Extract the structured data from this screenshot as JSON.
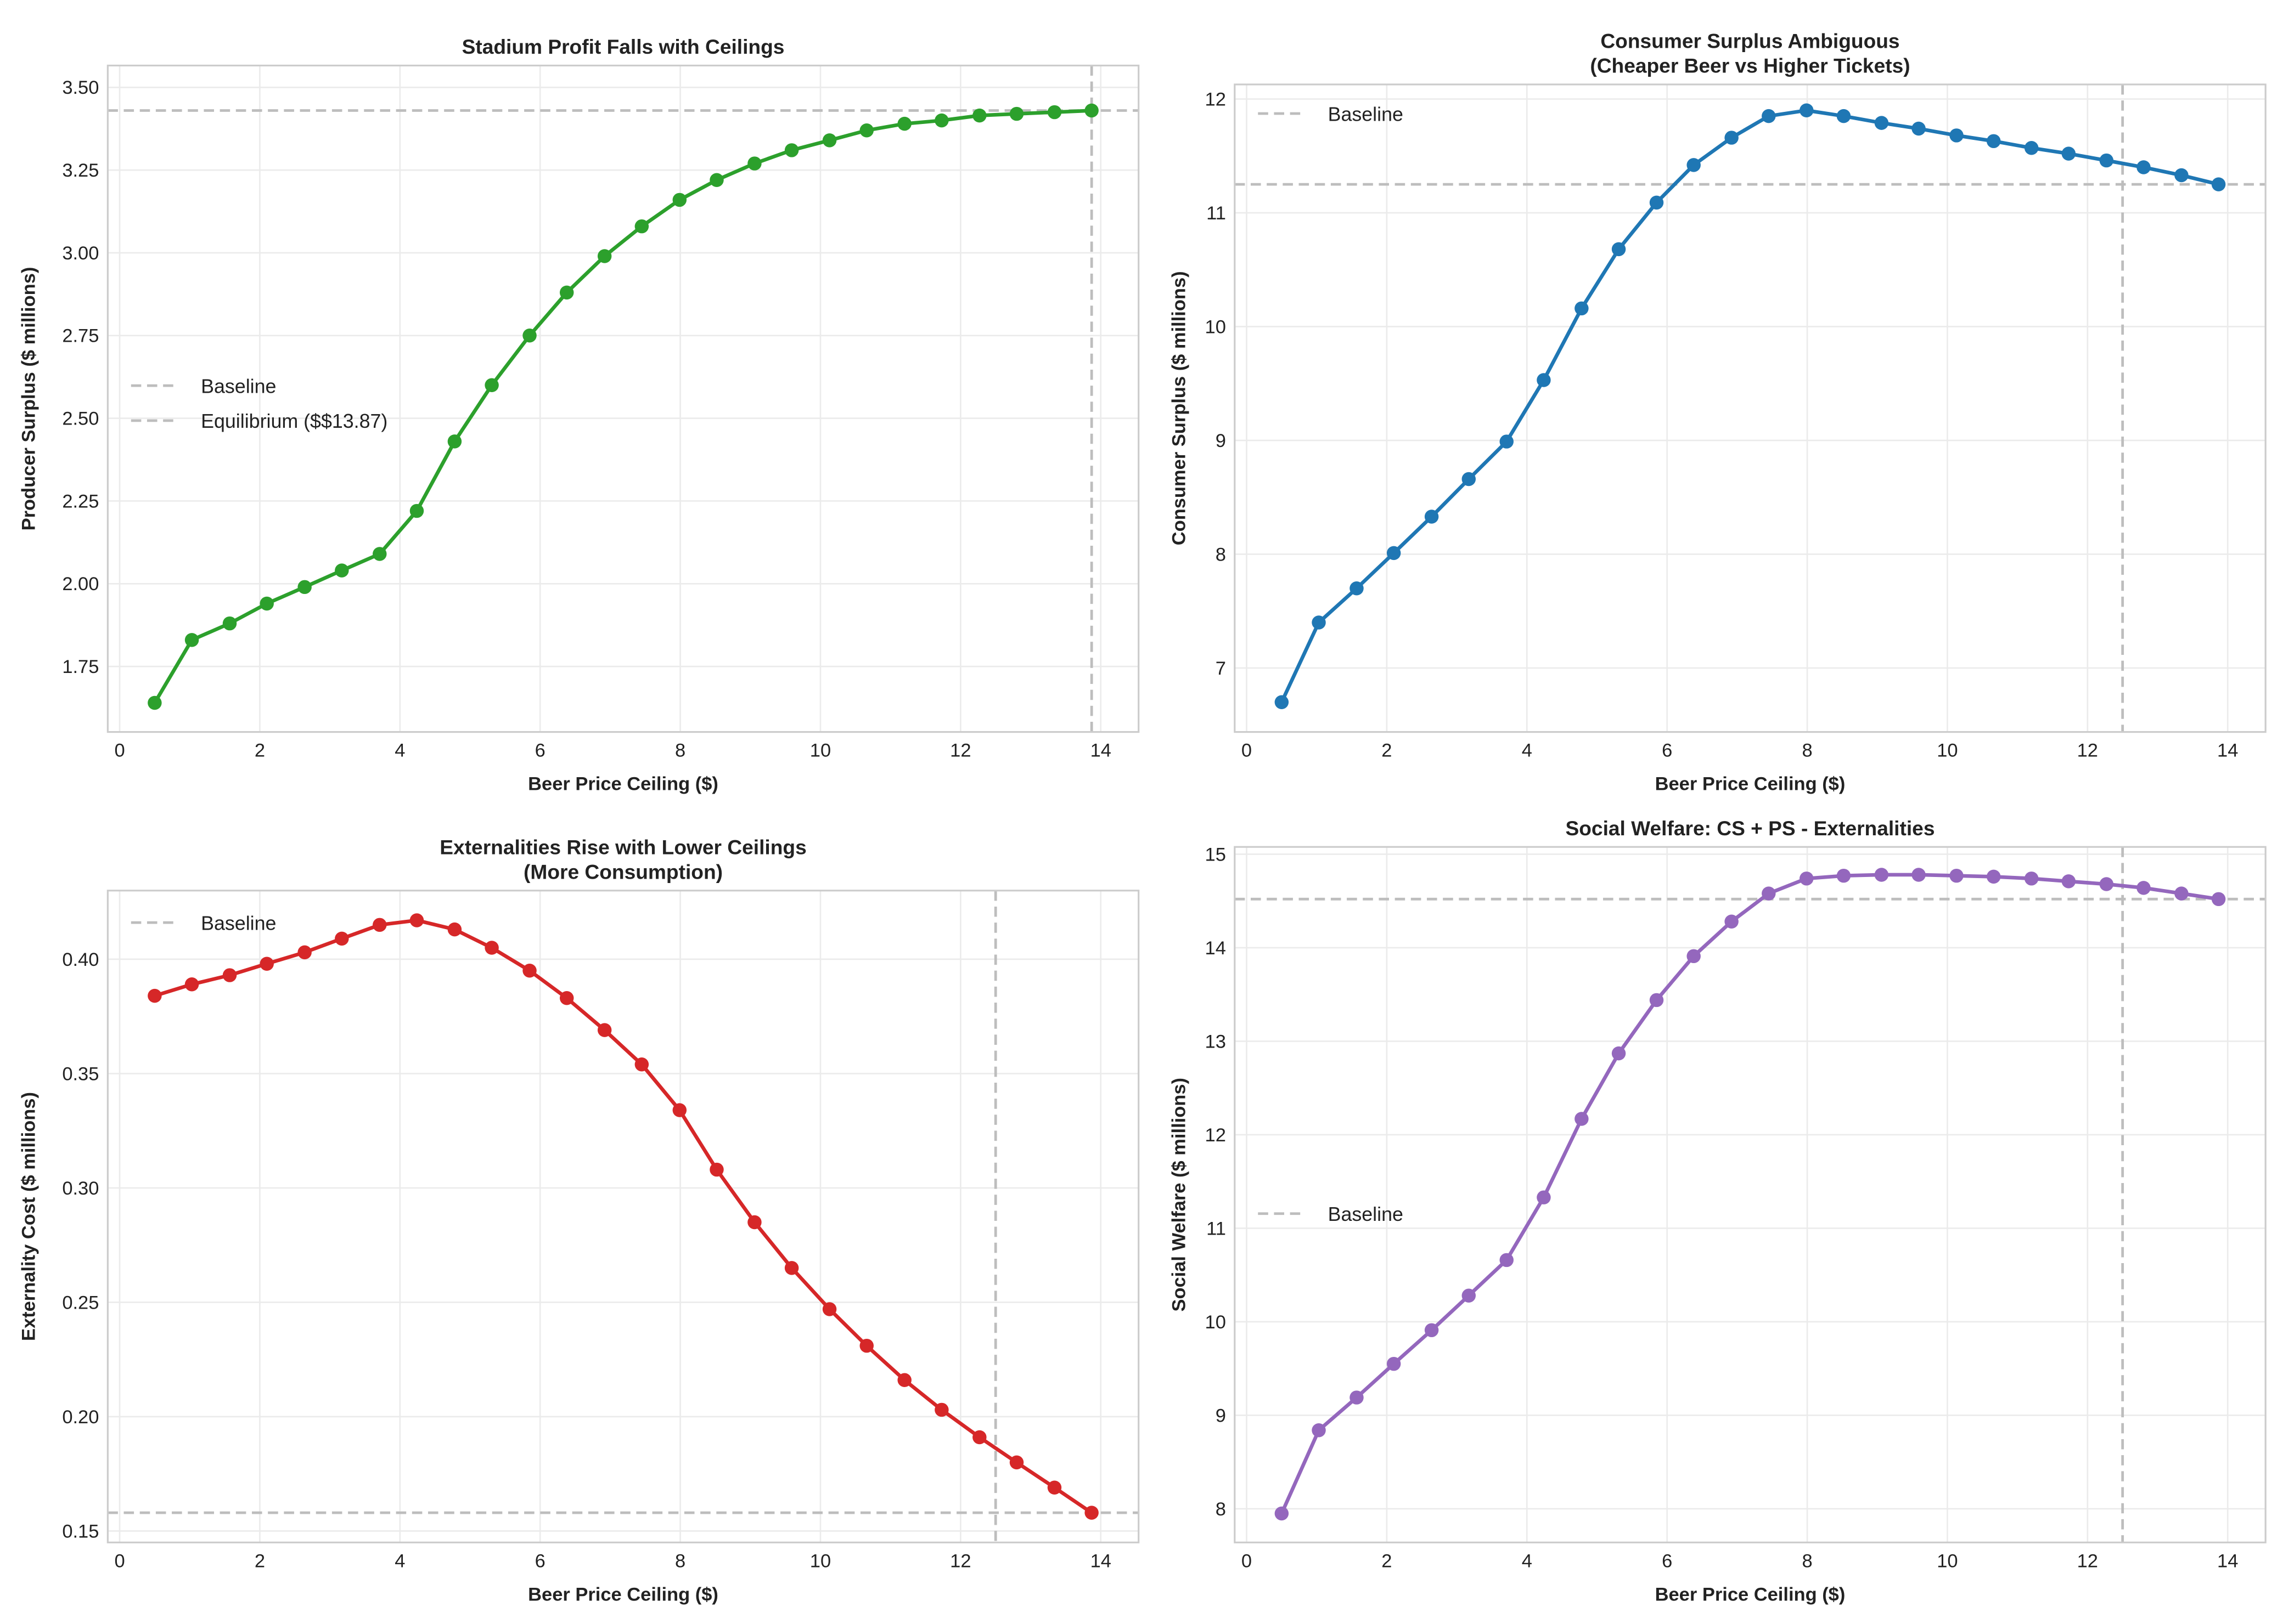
{
  "chart_data": [
    {
      "type": "line",
      "title": "Stadium Profit Falls with Ceilings",
      "xlabel": "Beer Price Ceiling ($)",
      "ylabel": "Producer Surplus ($ millions)",
      "color": "#2ca02c",
      "xlim": [
        -0.17,
        14.54
      ],
      "ylim": [
        1.552,
        3.566
      ],
      "xticks": [
        "0",
        "2",
        "4",
        "6",
        "8",
        "10",
        "12",
        "14"
      ],
      "yticks": [
        "1.75",
        "2.00",
        "2.25",
        "2.50",
        "2.75",
        "3.00",
        "3.25",
        "3.50"
      ],
      "x": [
        0.5,
        1.03,
        1.57,
        2.1,
        2.64,
        3.17,
        3.71,
        4.24,
        4.78,
        5.31,
        5.85,
        6.38,
        6.92,
        7.45,
        7.99,
        8.52,
        9.06,
        9.59,
        10.13,
        10.66,
        11.2,
        11.73,
        12.27,
        12.8,
        13.34,
        13.87
      ],
      "y": [
        1.64,
        1.83,
        1.88,
        1.94,
        1.99,
        2.04,
        2.09,
        2.22,
        2.43,
        2.6,
        2.75,
        2.88,
        2.99,
        3.08,
        3.16,
        3.22,
        3.27,
        3.31,
        3.34,
        3.37,
        3.39,
        3.4,
        3.415,
        3.42,
        3.425,
        3.43
      ],
      "baseline": 3.43,
      "vline": 13.87,
      "legend": [
        "Baseline",
        "Equilibrium ($$13.87)"
      ],
      "legend_position": "center-left",
      "grid": true
    },
    {
      "type": "line",
      "title": "Consumer Surplus Ambiguous\n(Cheaper Beer vs Higher Tickets)",
      "title_lines": [
        "Consumer Surplus Ambiguous",
        "(Cheaper Beer vs Higher Tickets)"
      ],
      "xlabel": "Beer Price Ceiling ($)",
      "ylabel": "Consumer Surplus ($ millions)",
      "color": "#1f77b4",
      "xlim": [
        -0.17,
        14.54
      ],
      "ylim": [
        6.438,
        12.128
      ],
      "xticks": [
        "0",
        "2",
        "4",
        "6",
        "8",
        "10",
        "12",
        "14"
      ],
      "yticks": [
        "7",
        "8",
        "9",
        "10",
        "11",
        "12"
      ],
      "x": [
        0.5,
        1.03,
        1.57,
        2.1,
        2.64,
        3.17,
        3.71,
        4.24,
        4.78,
        5.31,
        5.85,
        6.38,
        6.92,
        7.45,
        7.99,
        8.52,
        9.06,
        9.59,
        10.13,
        10.66,
        11.2,
        11.73,
        12.27,
        12.8,
        13.34,
        13.87
      ],
      "y": [
        6.7,
        7.4,
        7.7,
        8.01,
        8.33,
        8.66,
        8.99,
        9.53,
        10.16,
        10.68,
        11.09,
        11.42,
        11.66,
        11.85,
        11.9,
        11.85,
        11.79,
        11.74,
        11.68,
        11.63,
        11.57,
        11.52,
        11.46,
        11.4,
        11.33,
        11.25
      ],
      "baseline": 11.25,
      "vline": 12.5,
      "legend": [
        "Baseline"
      ],
      "legend_position": "upper-left",
      "grid": true
    },
    {
      "type": "line",
      "title": "Externalities Rise with Lower Ceilings\n(More Consumption)",
      "title_lines": [
        "Externalities Rise with Lower Ceilings",
        "(More Consumption)"
      ],
      "xlabel": "Beer Price Ceiling ($)",
      "ylabel": "Externality Cost ($ millions)",
      "color": "#d62728",
      "xlim": [
        -0.17,
        14.54
      ],
      "ylim": [
        0.145,
        0.43
      ],
      "xticks": [
        "0",
        "2",
        "4",
        "6",
        "8",
        "10",
        "12",
        "14"
      ],
      "yticks": [
        "0.15",
        "0.20",
        "0.25",
        "0.30",
        "0.35",
        "0.40"
      ],
      "x": [
        0.5,
        1.03,
        1.57,
        2.1,
        2.64,
        3.17,
        3.71,
        4.24,
        4.78,
        5.31,
        5.85,
        6.38,
        6.92,
        7.45,
        7.99,
        8.52,
        9.06,
        9.59,
        10.13,
        10.66,
        11.2,
        11.73,
        12.27,
        12.8,
        13.34,
        13.87
      ],
      "y": [
        0.384,
        0.389,
        0.393,
        0.398,
        0.403,
        0.409,
        0.415,
        0.417,
        0.413,
        0.405,
        0.395,
        0.383,
        0.369,
        0.354,
        0.334,
        0.308,
        0.285,
        0.265,
        0.247,
        0.231,
        0.216,
        0.203,
        0.191,
        0.18,
        0.169,
        0.158
      ],
      "baseline": 0.158,
      "vline": 12.5,
      "legend": [
        "Baseline"
      ],
      "legend_position": "upper-left",
      "grid": true
    },
    {
      "type": "line",
      "title": "Social Welfare: CS + PS - Externalities",
      "xlabel": "Beer Price Ceiling ($)",
      "ylabel": "Social Welfare ($ millions)",
      "color": "#9467bd",
      "xlim": [
        -0.17,
        14.54
      ],
      "ylim": [
        7.64,
        15.078
      ],
      "xticks": [
        "0",
        "2",
        "4",
        "6",
        "8",
        "10",
        "12",
        "14"
      ],
      "yticks": [
        "8",
        "9",
        "10",
        "11",
        "12",
        "13",
        "14",
        "15"
      ],
      "x": [
        0.5,
        1.03,
        1.57,
        2.1,
        2.64,
        3.17,
        3.71,
        4.24,
        4.78,
        5.31,
        5.85,
        6.38,
        6.92,
        7.45,
        7.99,
        8.52,
        9.06,
        9.59,
        10.13,
        10.66,
        11.2,
        11.73,
        12.27,
        12.8,
        13.34,
        13.87
      ],
      "y": [
        7.95,
        8.84,
        9.19,
        9.55,
        9.91,
        10.28,
        10.66,
        11.33,
        12.17,
        12.87,
        13.44,
        13.91,
        14.28,
        14.58,
        14.74,
        14.77,
        14.78,
        14.78,
        14.77,
        14.76,
        14.74,
        14.71,
        14.68,
        14.64,
        14.58,
        14.52
      ],
      "baseline": 14.52,
      "vline": 12.5,
      "legend": [
        "Baseline"
      ],
      "legend_position": "center-left",
      "grid": true
    }
  ]
}
